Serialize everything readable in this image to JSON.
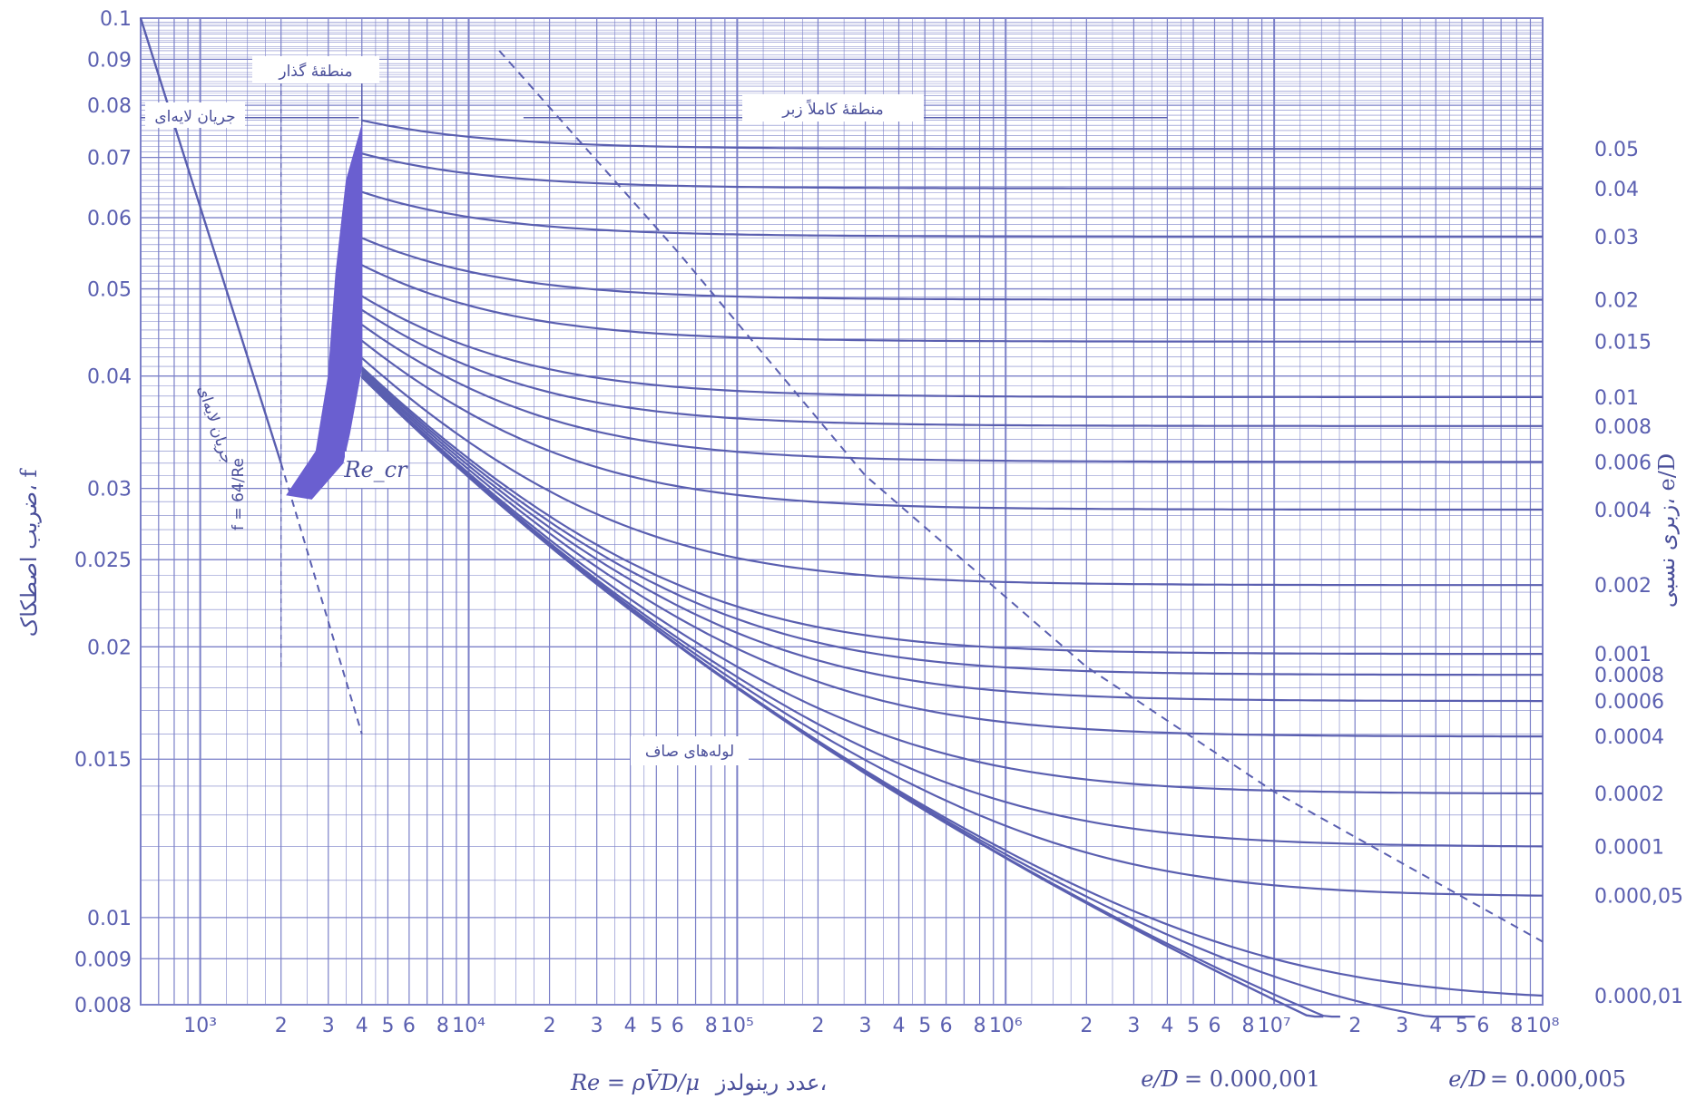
{
  "chart_data": {
    "type": "line",
    "log_x": true,
    "log_y": true,
    "xlim": [
      600,
      100000000
    ],
    "ylim": [
      0.008,
      0.1
    ],
    "grid": true,
    "xlabel": "عدد رینولدز،",
    "xlabel_formula": "Re = ρV̄D/μ",
    "ylabel": "ضریب اصطکاک، f",
    "y2label": "زبری نسبی، e/D",
    "x_tick_labels": [
      {
        "x": 1000,
        "label": "10³"
      },
      {
        "x": 2000,
        "label": "2"
      },
      {
        "x": 3000,
        "label": "3"
      },
      {
        "x": 4000,
        "label": "4"
      },
      {
        "x": 5000,
        "label": "5"
      },
      {
        "x": 6000,
        "label": "6"
      },
      {
        "x": 8000,
        "label": "8"
      },
      {
        "x": 10000,
        "label": "10⁴"
      },
      {
        "x": 20000,
        "label": "2"
      },
      {
        "x": 30000,
        "label": "3"
      },
      {
        "x": 40000,
        "label": "4"
      },
      {
        "x": 50000,
        "label": "5"
      },
      {
        "x": 60000,
        "label": "6"
      },
      {
        "x": 80000,
        "label": "8"
      },
      {
        "x": 100000,
        "label": "10⁵"
      },
      {
        "x": 200000,
        "label": "2"
      },
      {
        "x": 300000,
        "label": "3"
      },
      {
        "x": 400000,
        "label": "4"
      },
      {
        "x": 500000,
        "label": "5"
      },
      {
        "x": 600000,
        "label": "6"
      },
      {
        "x": 800000,
        "label": "8"
      },
      {
        "x": 1000000,
        "label": "10⁶"
      },
      {
        "x": 2000000,
        "label": "2"
      },
      {
        "x": 3000000,
        "label": "3"
      },
      {
        "x": 4000000,
        "label": "4"
      },
      {
        "x": 5000000,
        "label": "5"
      },
      {
        "x": 6000000,
        "label": "6"
      },
      {
        "x": 8000000,
        "label": "8"
      },
      {
        "x": 10000000,
        "label": "10⁷"
      },
      {
        "x": 20000000,
        "label": "2"
      },
      {
        "x": 30000000,
        "label": "3"
      },
      {
        "x": 40000000,
        "label": "4"
      },
      {
        "x": 50000000,
        "label": "5"
      },
      {
        "x": 60000000,
        "label": "6"
      },
      {
        "x": 80000000,
        "label": "8"
      },
      {
        "x": 100000000,
        "label": "10⁸"
      }
    ],
    "y_tick_labels": [
      {
        "y": 0.1,
        "label": "0.1"
      },
      {
        "y": 0.09,
        "label": "0.09"
      },
      {
        "y": 0.08,
        "label": "0.08"
      },
      {
        "y": 0.07,
        "label": "0.07"
      },
      {
        "y": 0.06,
        "label": "0.06"
      },
      {
        "y": 0.05,
        "label": "0.05"
      },
      {
        "y": 0.04,
        "label": "0.04"
      },
      {
        "y": 0.03,
        "label": "0.03"
      },
      {
        "y": 0.025,
        "label": "0.025"
      },
      {
        "y": 0.02,
        "label": "0.02"
      },
      {
        "y": 0.015,
        "label": "0.015"
      },
      {
        "y": 0.01,
        "label": "0.01"
      },
      {
        "y": 0.009,
        "label": "0.009"
      },
      {
        "y": 0.008,
        "label": "0.008"
      }
    ],
    "roughness_curves": [
      {
        "label": "0.05",
        "ed": 0.05,
        "f_rough": 0.072
      },
      {
        "label": "0.04",
        "ed": 0.04,
        "f_rough": 0.065
      },
      {
        "label": "0.03",
        "ed": 0.03,
        "f_rough": 0.057
      },
      {
        "label": "0.02",
        "ed": 0.02,
        "f_rough": 0.049
      },
      {
        "label": "0.015",
        "ed": 0.015,
        "f_rough": 0.044
      },
      {
        "label": "0.01",
        "ed": 0.01,
        "f_rough": 0.038
      },
      {
        "label": "0.008",
        "ed": 0.008,
        "f_rough": 0.0355
      },
      {
        "label": "0.006",
        "ed": 0.006,
        "f_rough": 0.0325
      },
      {
        "label": "0.004",
        "ed": 0.004,
        "f_rough": 0.0284
      },
      {
        "label": "0.002",
        "ed": 0.002,
        "f_rough": 0.0234
      },
      {
        "label": "0.001",
        "ed": 0.001,
        "f_rough": 0.0196
      },
      {
        "label": "0.0008",
        "ed": 0.0008,
        "f_rough": 0.0186
      },
      {
        "label": "0.0006",
        "ed": 0.0006,
        "f_rough": 0.0175
      },
      {
        "label": "0.0004",
        "ed": 0.0004,
        "f_rough": 0.016
      },
      {
        "label": "0.0002",
        "ed": 0.0002,
        "f_rough": 0.0137
      },
      {
        "label": "0.0001",
        "ed": 0.0001,
        "f_rough": 0.012
      },
      {
        "label": "0.000,05",
        "ed": 5e-05,
        "f_rough": 0.0106
      },
      {
        "label": "0.000,01",
        "ed": 1e-05,
        "f_rough": 0.008
      }
    ],
    "bottom_curve_labels": [
      {
        "label": "= 0.000,001",
        "ed": 1e-06
      },
      {
        "label": "= 0.000,005",
        "ed": 5e-06
      }
    ],
    "bottom_curve_label_prefix": "e/D",
    "laminar": {
      "formula": "f = 64/Re",
      "x": [
        600,
        4000
      ],
      "label": "جریان لایه‌ای"
    },
    "annotations": {
      "laminar_region": "جریان لایه‌ای",
      "transition_region": "منطقهٔ گذار",
      "fully_rough_region": "منطقهٔ کاملاً زبر",
      "critical_re": "Re_cr",
      "smooth_pipes": "لوله‌های صاف"
    }
  },
  "colors": {
    "ink": "#5a5fb0",
    "grid": "#7b80c8",
    "fill": "#6a5fd0"
  }
}
